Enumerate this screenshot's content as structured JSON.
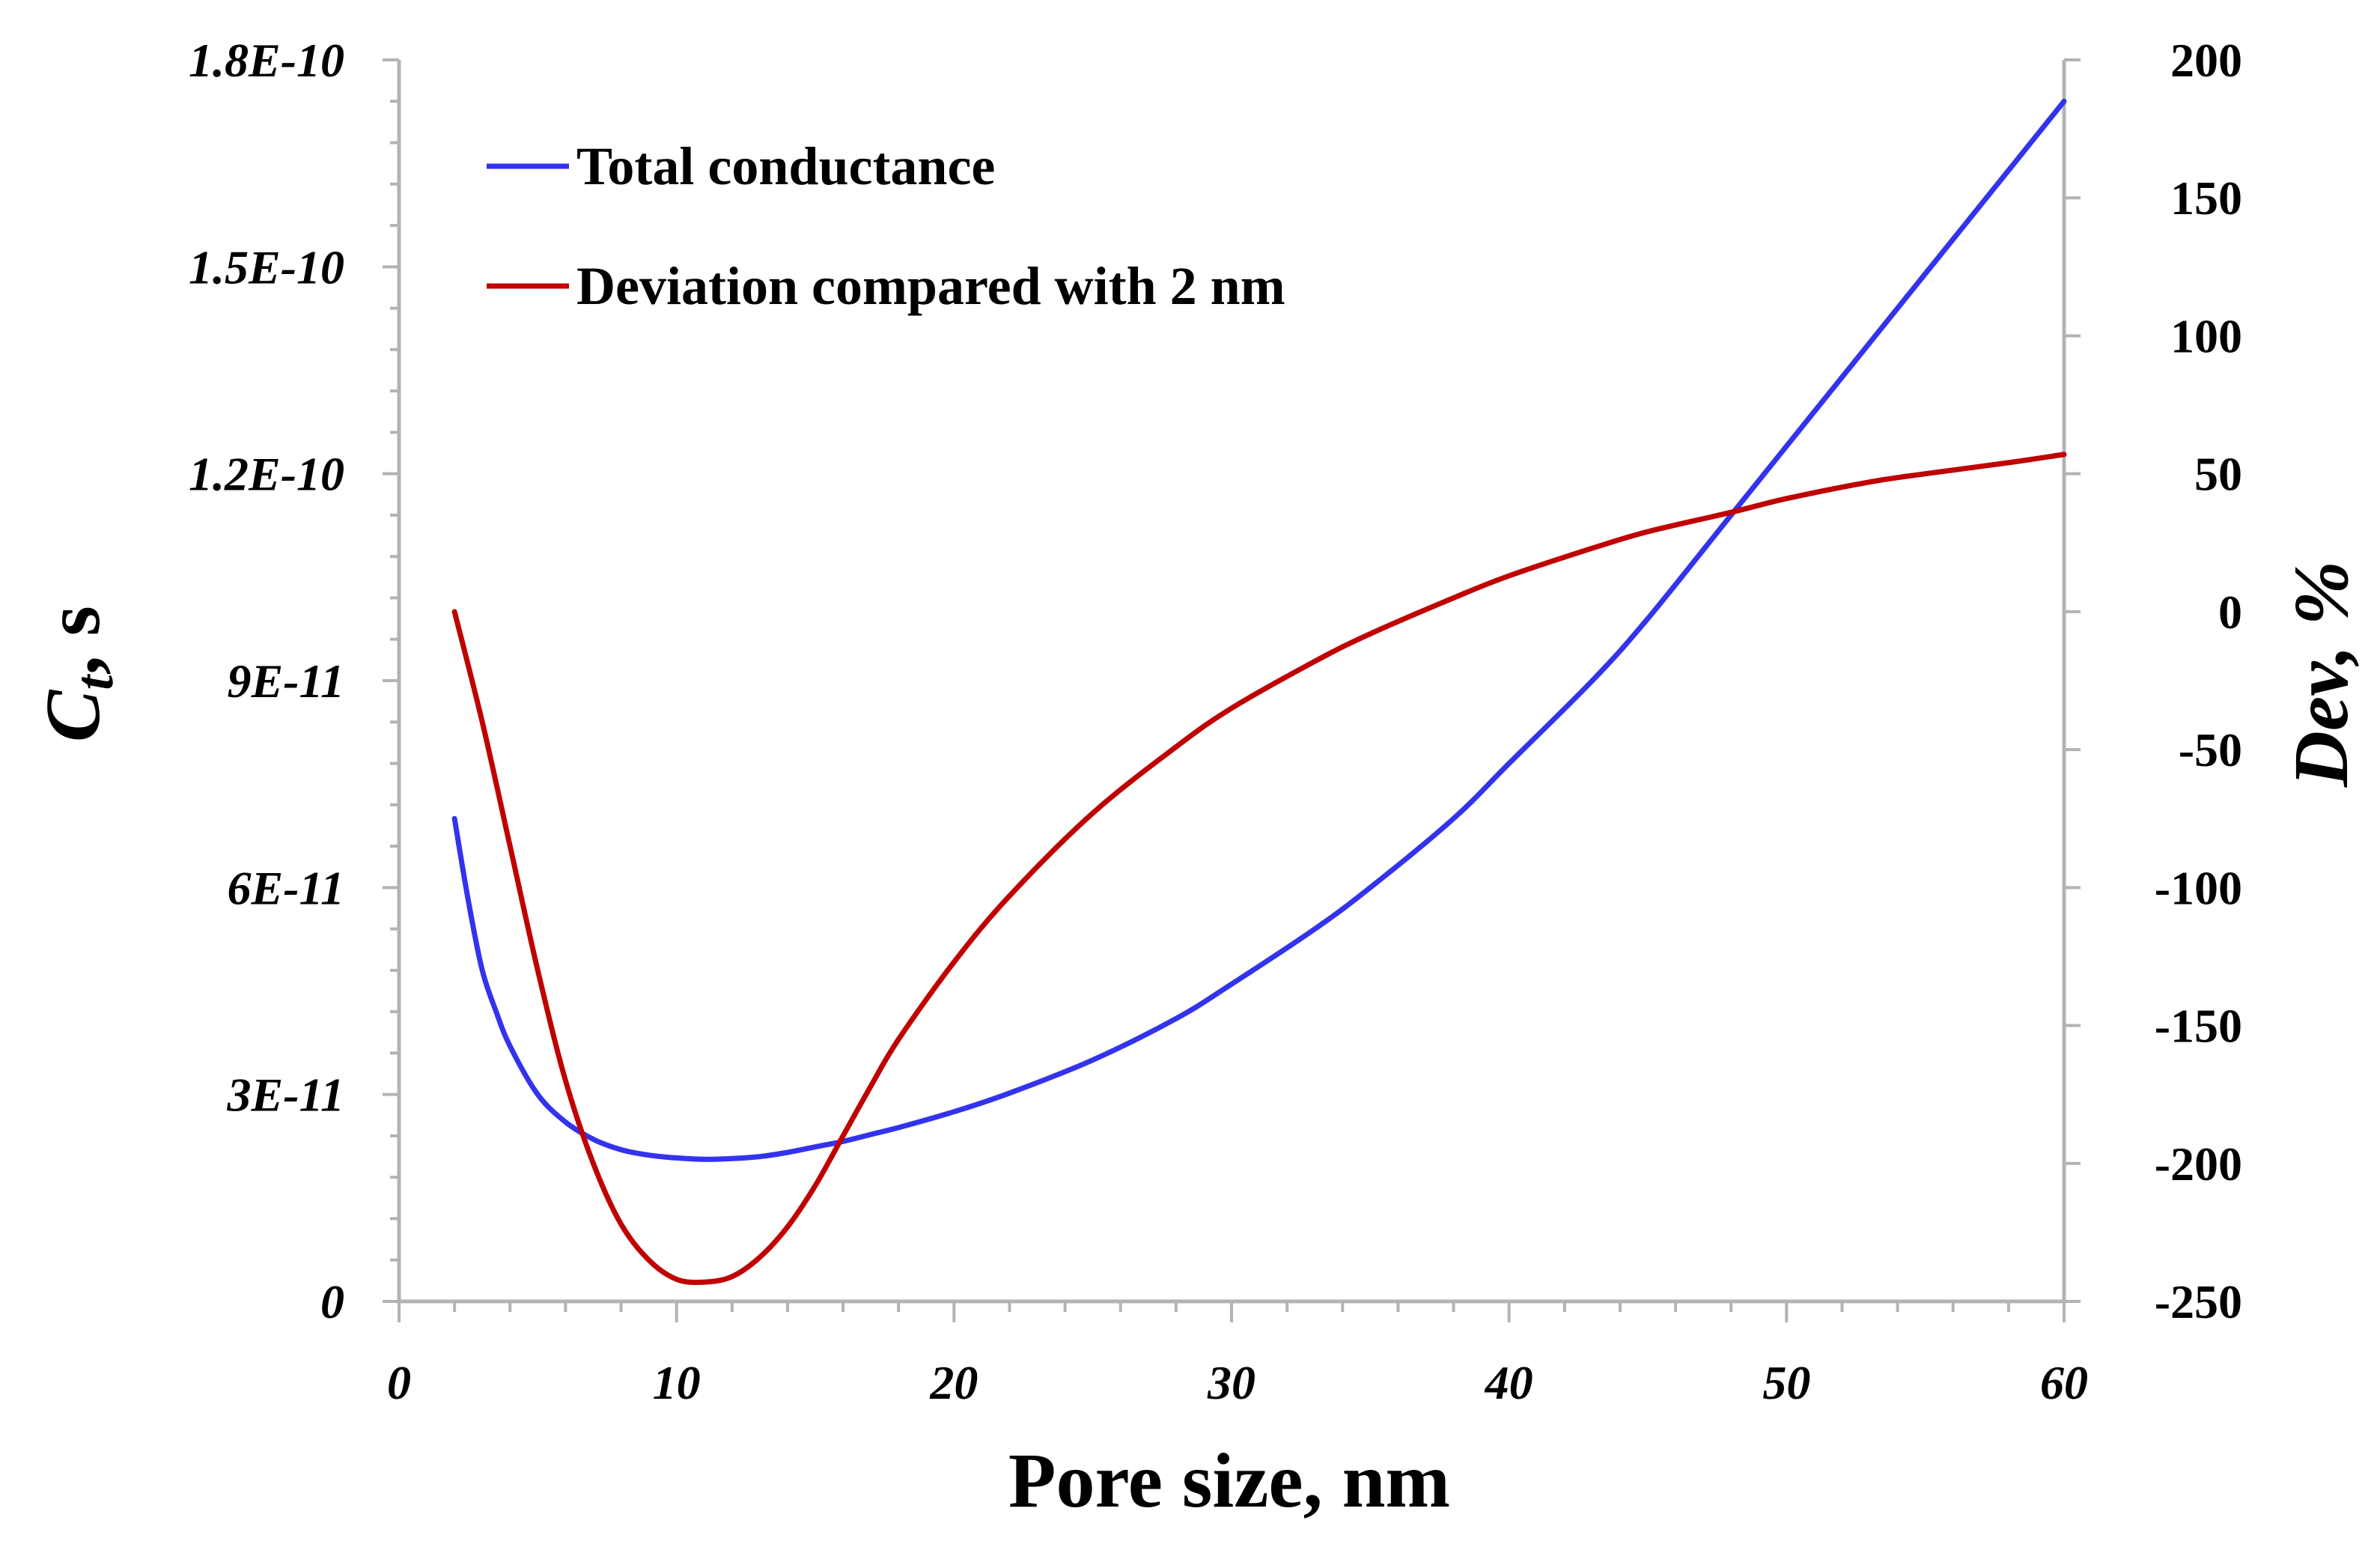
{
  "chart_data": {
    "type": "line",
    "title": "",
    "xlabel": "Pore size, nm",
    "ylabel_left": {
      "main": "C",
      "sub": "t",
      "suffix": ", s"
    },
    "ylabel_right": "Dev, %",
    "xlim": [
      0,
      60
    ],
    "ylim_left": [
      0,
      1.8e-10
    ],
    "ylim_right": [
      -250,
      200
    ],
    "x_ticks": [
      "0",
      "10",
      "20",
      "30",
      "40",
      "50",
      "60"
    ],
    "y_left_ticks": [
      "0",
      "3E-11",
      "6E-11",
      "9E-11",
      "1.2E-10",
      "1.5E-10",
      "1.8E-10"
    ],
    "y_right_ticks": [
      "-250",
      "-200",
      "-150",
      "-100",
      "-50",
      "0",
      "50",
      "100",
      "150",
      "200"
    ],
    "legend_position": "top-left",
    "series": [
      {
        "name": "Total conductance",
        "axis": "left",
        "color": "#3333ee",
        "x": [
          2,
          2.5,
          3,
          3.5,
          4,
          5,
          6,
          7,
          8,
          9,
          10,
          11,
          12,
          13,
          14,
          15,
          16,
          17,
          18,
          20,
          22,
          25,
          28,
          30,
          33,
          35,
          38,
          40,
          43,
          45,
          48,
          50,
          53,
          55,
          58,
          60
        ],
        "values": [
          7e-11,
          5.8e-11,
          4.8e-11,
          4.2e-11,
          3.7e-11,
          3e-11,
          2.6e-11,
          2.35e-11,
          2.2e-11,
          2.12e-11,
          2.08e-11,
          2.06e-11,
          2.07e-11,
          2.1e-11,
          2.16e-11,
          2.24e-11,
          2.32e-11,
          2.42e-11,
          2.52e-11,
          2.75e-11,
          3.02e-11,
          3.5e-11,
          4.1e-11,
          4.6e-11,
          5.4e-11,
          6e-11,
          7e-11,
          7.8e-11,
          9e-11,
          9.9e-11,
          1.14e-10,
          1.24e-10,
          1.39e-10,
          1.49e-10,
          1.64e-10,
          1.74e-10
        ]
      },
      {
        "name": "Deviation compared with 2 nm",
        "axis": "right",
        "color": "#c00000",
        "x": [
          2,
          3,
          4,
          5,
          6,
          7,
          8,
          9,
          10,
          11,
          12,
          13,
          14,
          15,
          16,
          17,
          18,
          20,
          22,
          25,
          28,
          30,
          33,
          35,
          38,
          40,
          43,
          45,
          48,
          50,
          53,
          55,
          58,
          60
        ],
        "values": [
          0,
          -40,
          -85,
          -130,
          -170,
          -200,
          -222,
          -235,
          -242,
          -243,
          -241,
          -234,
          -223,
          -208,
          -190,
          -172,
          -155,
          -127,
          -103,
          -73,
          -49,
          -35,
          -18,
          -8,
          5,
          13,
          23,
          29,
          36,
          41,
          47,
          50,
          54,
          57
        ]
      }
    ]
  }
}
